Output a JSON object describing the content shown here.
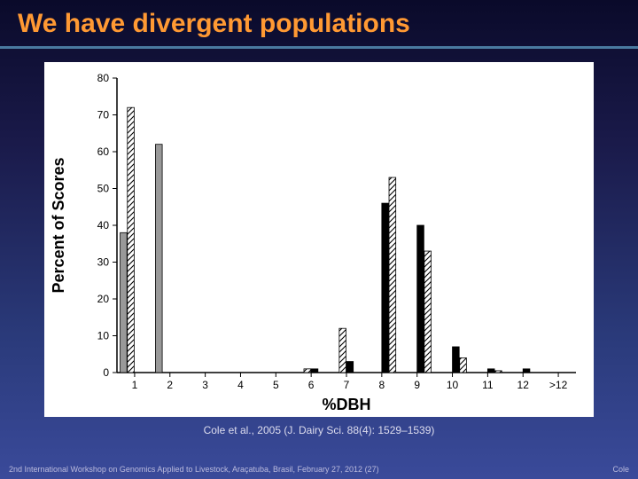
{
  "slide": {
    "title": "We have divergent populations",
    "citation": "Cole et al., 2005 (J. Dairy Sci. 88(4): 1529–1539)",
    "footer_left": "2nd International Workshop on Genomics Applied to Livestock, Araçatuba, Brasil, February 27, 2012 (27)",
    "footer_right": "Cole",
    "background_gradient": [
      "#0a0a2a",
      "#1a1a4a",
      "#2a3a7a",
      "#3a4a9a"
    ],
    "title_color": "#ff9933",
    "underline_color": "#4a7aa0"
  },
  "chart": {
    "type": "grouped-bar",
    "ylabel": "Percent of Scores",
    "xlabel": "%DBH",
    "ylim": [
      0,
      80
    ],
    "ytick_step": 10,
    "yticks": [
      0,
      10,
      20,
      30,
      40,
      50,
      60,
      70,
      80
    ],
    "categories": [
      "1",
      "2",
      "3",
      "4",
      "5",
      "6",
      "7",
      "8",
      "9",
      "10",
      "11",
      "12",
      ">12"
    ],
    "series": [
      {
        "name": "series-gray",
        "fill": "#999999",
        "pattern": "solid"
      },
      {
        "name": "series-hatch1",
        "fill": "#ffffff",
        "pattern": "diagonal"
      },
      {
        "name": "series-black",
        "fill": "#000000",
        "pattern": "solid"
      },
      {
        "name": "series-hatch2",
        "fill": "#ffffff",
        "pattern": "diagonal"
      }
    ],
    "data": {
      "series-gray": [
        38,
        62,
        0,
        0,
        0,
        0,
        0,
        0,
        0,
        0,
        0,
        0,
        0
      ],
      "series-hatch1": [
        72,
        0,
        0,
        0,
        0,
        1,
        12,
        0,
        0,
        0,
        0,
        0,
        0
      ],
      "series-black": [
        0,
        0,
        0,
        0,
        0,
        1,
        3,
        46,
        40,
        7,
        1,
        1,
        0
      ],
      "series-hatch2": [
        0,
        0,
        0,
        0,
        0,
        0,
        0,
        53,
        33,
        4,
        0.5,
        0,
        0
      ]
    },
    "plot_background": "#ffffff",
    "axis_color": "#000000",
    "bar_stroke": "#000000",
    "bar_group_width": 0.82,
    "label_fontsize": 18,
    "tick_fontsize": 12
  }
}
